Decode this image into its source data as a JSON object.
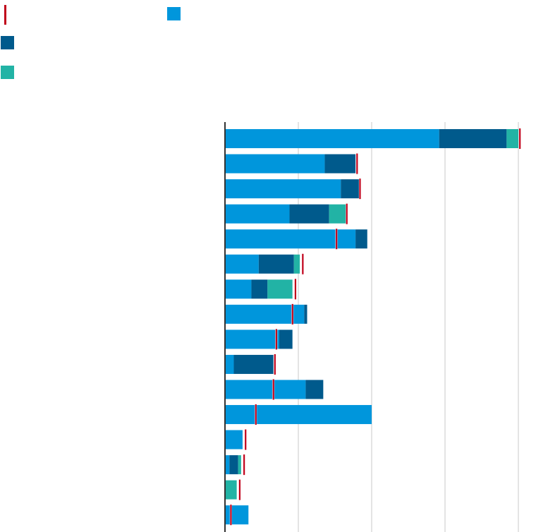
{
  "chart_data": {
    "type": "bar",
    "orientation": "horizontal",
    "stacked": true,
    "grid": true,
    "legend_position": "top-left",
    "xlim": [
      0,
      20
    ],
    "x_gridlines": [
      0,
      5,
      10,
      15,
      20
    ],
    "categories": [
      "",
      "",
      "",
      "",
      "",
      "",
      "",
      "",
      "",
      "",
      "",
      "",
      "",
      "",
      "",
      ""
    ],
    "series": [
      {
        "color": "#0096dc",
        "values": [
          14.6,
          6.8,
          7.9,
          4.4,
          8.9,
          2.3,
          1.8,
          5.4,
          3.7,
          0.6,
          5.5,
          10.0,
          1.2,
          0.3,
          0.0,
          1.6
        ]
      },
      {
        "color": "#005a8c",
        "values": [
          4.6,
          2.1,
          1.3,
          2.7,
          0.8,
          2.4,
          1.1,
          0.2,
          0.9,
          2.7,
          1.2,
          0.0,
          0.0,
          0.6,
          0.0,
          0.0
        ]
      },
      {
        "color": "#22b3a5",
        "values": [
          0.8,
          0.0,
          0.0,
          1.2,
          0.0,
          0.4,
          1.7,
          0.0,
          0.0,
          0.0,
          0.0,
          0.0,
          0.0,
          0.2,
          0.8,
          0.0
        ]
      }
    ],
    "marker": {
      "color": "#c0001a",
      "values": [
        20.1,
        9.0,
        9.2,
        8.3,
        7.6,
        5.3,
        4.8,
        4.6,
        3.5,
        3.4,
        3.3,
        2.1,
        1.4,
        1.3,
        1.0,
        0.4
      ]
    },
    "legend": [
      {
        "kind": "line",
        "color": "#c0001a"
      },
      {
        "kind": "box",
        "color": "#0096dc"
      },
      {
        "kind": "box",
        "color": "#005a8c"
      },
      {
        "kind": "box",
        "color": "#22b3a5"
      }
    ]
  }
}
